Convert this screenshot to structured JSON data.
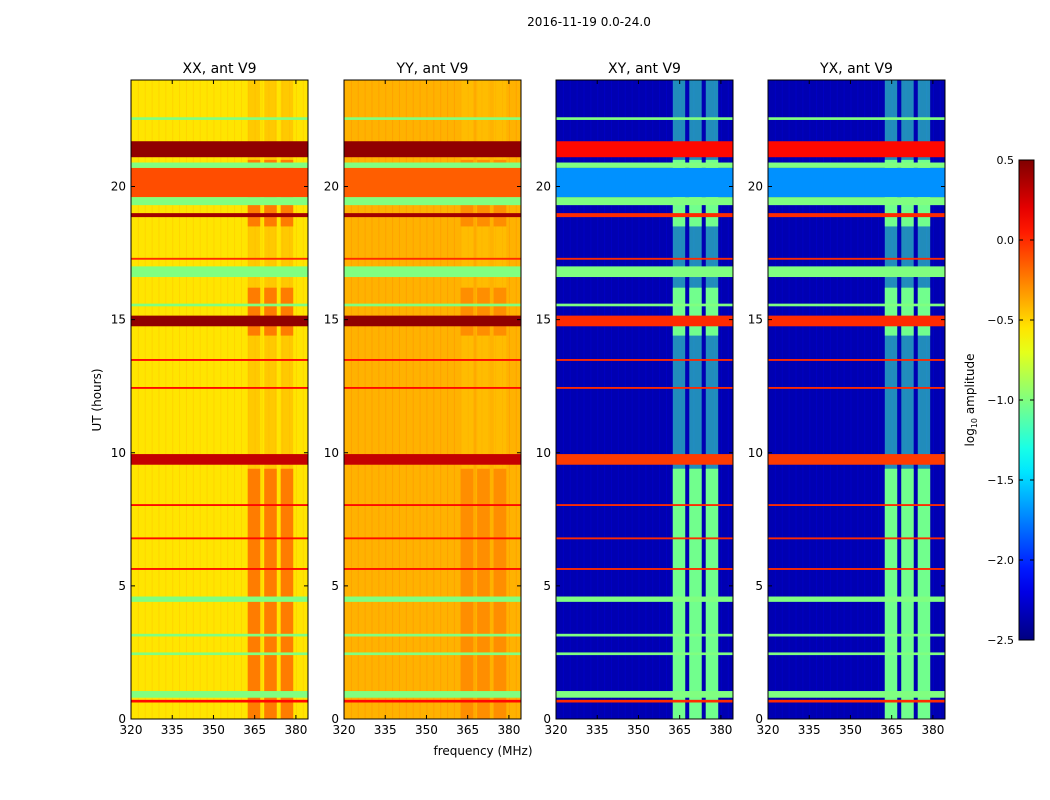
{
  "chart_data": {
    "type": "heatmap",
    "suptitle": "2016-11-19 0.0-24.0",
    "xlabel": "frequency (MHz)",
    "ylabel": "UT (hours)",
    "xlim": [
      320,
      384.4
    ],
    "ylim": [
      0,
      24
    ],
    "xticks": [
      320,
      335,
      350,
      365,
      380
    ],
    "yticks": [
      0,
      5,
      10,
      15,
      20
    ],
    "panels": [
      {
        "title": "XX, ant V9",
        "base": -0.55,
        "stripe_value": -0.05
      },
      {
        "title": "YY, ant V9",
        "base": -0.4,
        "stripe_value": -0.1
      },
      {
        "title": "XY, ant V9",
        "base": -2.35,
        "stripe_value": -0.85
      },
      {
        "title": "YX, ant V9",
        "base": -2.35,
        "stripe_value": -0.85
      }
    ],
    "stripes_mhz": [
      [
        362.5,
        367
      ],
      [
        368.5,
        373
      ],
      [
        374.5,
        379
      ]
    ],
    "bands_hours": [
      {
        "t": [
          19.6,
          20.7
        ],
        "values": [
          -0.1,
          -0.15,
          -1.7,
          -1.7
        ]
      },
      {
        "t": [
          21.1,
          21.7
        ],
        "values": [
          0.45,
          0.45,
          0.1,
          0.1
        ]
      },
      {
        "t": [
          18.85,
          19.0
        ],
        "values": [
          0.4,
          0.4,
          0.0,
          0.0
        ]
      },
      {
        "t": [
          14.75,
          15.15
        ],
        "values": [
          0.45,
          0.45,
          0.0,
          0.0
        ]
      },
      {
        "t": [
          9.55,
          9.95
        ],
        "values": [
          0.3,
          0.3,
          -0.05,
          -0.05
        ]
      },
      {
        "t": [
          16.6,
          17.0
        ],
        "values": [
          -1.0,
          -1.0,
          -1.0,
          -1.0
        ]
      },
      {
        "t": [
          19.3,
          19.6
        ],
        "values": [
          -1.0,
          -1.0,
          -1.0,
          -1.0
        ]
      },
      {
        "t": [
          20.7,
          20.9
        ],
        "values": [
          -1.0,
          -1.0,
          -1.0,
          -1.0
        ]
      },
      {
        "t": [
          4.4,
          4.6
        ],
        "values": [
          -1.0,
          -1.0,
          -1.0,
          -1.0
        ]
      },
      {
        "t": [
          0.8,
          1.05
        ],
        "values": [
          -1.0,
          -1.0,
          -1.0,
          -1.0
        ]
      },
      {
        "t": [
          22.5,
          22.6
        ],
        "values": [
          -1.0,
          -1.0,
          -1.0,
          -1.0
        ]
      },
      {
        "t": [
          15.5,
          15.6
        ],
        "values": [
          -1.0,
          -1.0,
          -1.0,
          -1.0
        ]
      },
      {
        "t": [
          2.4,
          2.5
        ],
        "values": [
          -1.0,
          -1.0,
          -1.0,
          -1.0
        ]
      },
      {
        "t": [
          3.1,
          3.2
        ],
        "values": [
          -1.0,
          -1.0,
          -1.0,
          -1.0
        ]
      },
      {
        "t": [
          17.25,
          17.32
        ],
        "values": [
          0.0,
          0.0,
          0.0,
          0.0
        ]
      },
      {
        "t": [
          13.45,
          13.52
        ],
        "values": [
          0.1,
          0.1,
          0.0,
          0.0
        ]
      },
      {
        "t": [
          12.4,
          12.47
        ],
        "values": [
          0.1,
          0.1,
          0.0,
          0.0
        ]
      },
      {
        "t": [
          8.0,
          8.07
        ],
        "values": [
          0.1,
          0.1,
          0.0,
          0.0
        ]
      },
      {
        "t": [
          6.75,
          6.82
        ],
        "values": [
          0.1,
          0.1,
          0.0,
          0.0
        ]
      },
      {
        "t": [
          5.6,
          5.67
        ],
        "values": [
          0.1,
          0.1,
          0.0,
          0.0
        ]
      },
      {
        "t": [
          0.62,
          0.72
        ],
        "values": [
          0.1,
          0.1,
          0.0,
          0.0
        ]
      }
    ],
    "stripe_active_hours": [
      [
        0,
        9.4
      ],
      [
        14.4,
        16.2
      ],
      [
        18.5,
        21
      ]
    ],
    "colorbar": {
      "label": "log10 amplitude",
      "label_main": "log",
      "label_sub": "10",
      "label_tail": " amplitude",
      "range": [
        -2.5,
        0.5
      ],
      "ticks": [
        0.5,
        0.0,
        -0.5,
        -1.0,
        -1.5,
        -2.0,
        -2.5
      ],
      "tick_labels": [
        "0.5",
        "0.0",
        "−0.5",
        "−1.0",
        "−1.5",
        "−2.0",
        "−2.5"
      ],
      "colormap": "jet"
    }
  }
}
